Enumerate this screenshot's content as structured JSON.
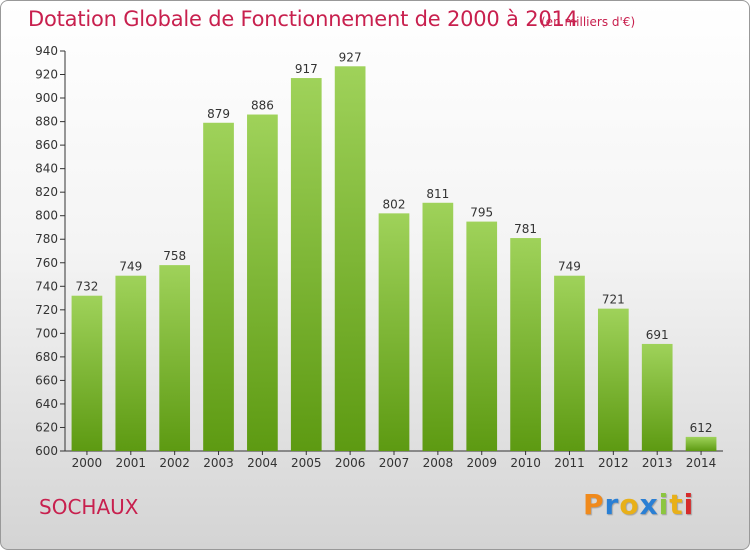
{
  "header": {
    "title": "Dotation Globale de Fonctionnement de 2000 à 2014",
    "subtitle": "(en milliers d'€)"
  },
  "footer": {
    "city": "SOCHAUX",
    "logo_letters": [
      "P",
      "r",
      "o",
      "x",
      "i",
      "t",
      "i"
    ],
    "logo_colors": [
      "#f08a1c",
      "#2a7fd4",
      "#e8b019",
      "#2a7fd4",
      "#8cc63f",
      "#e8b019",
      "#d62b2b"
    ]
  },
  "chart_data": {
    "type": "bar",
    "categories": [
      "2000",
      "2001",
      "2002",
      "2003",
      "2004",
      "2005",
      "2006",
      "2007",
      "2008",
      "2009",
      "2010",
      "2011",
      "2012",
      "2013",
      "2014"
    ],
    "values": [
      732,
      749,
      758,
      879,
      886,
      917,
      927,
      802,
      811,
      795,
      781,
      749,
      721,
      691,
      612
    ],
    "ylim": [
      600,
      940
    ],
    "yticks": [
      600,
      620,
      640,
      660,
      680,
      700,
      720,
      740,
      760,
      780,
      800,
      820,
      840,
      860,
      880,
      900,
      920,
      940
    ],
    "grid": false,
    "bar_color_light": "#9fd25a",
    "bar_color_dark": "#5d9a12"
  }
}
